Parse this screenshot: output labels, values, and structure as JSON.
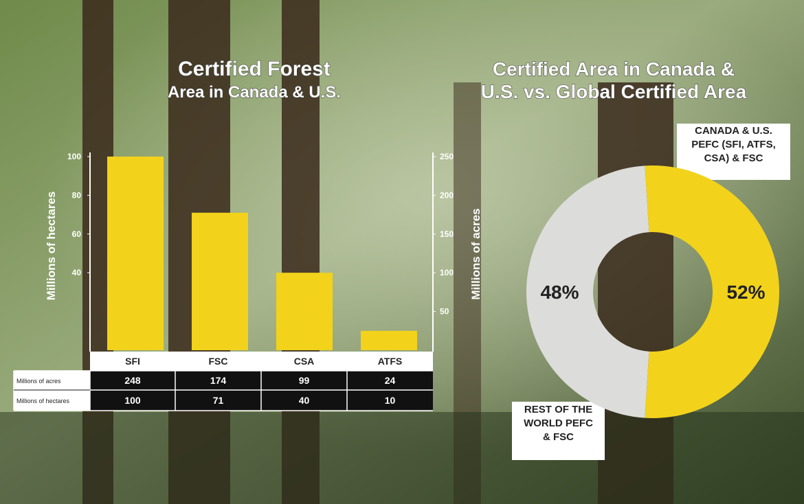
{
  "chart_data": [
    {
      "type": "bar",
      "title": "Certified Forest",
      "subtitle": "Area in Canada & U.S.",
      "categories": [
        "SFI",
        "FSC",
        "CSA",
        "ATFS"
      ],
      "values": [
        100,
        71,
        40,
        10
      ],
      "color": "#f2d21b",
      "ylabel": "Millions of hectares",
      "ylim": [
        0,
        100
      ],
      "yticks": [
        40,
        60,
        80,
        100
      ],
      "y2label": "Millions of acres",
      "y2lim": [
        0,
        250
      ],
      "y2ticks": [
        50,
        100,
        150,
        200,
        250
      ],
      "table": {
        "rows": [
          {
            "label": "Millions of acres",
            "values": [
              248,
              174,
              99,
              24
            ]
          },
          {
            "label": "Millions of hectares",
            "values": [
              100,
              71,
              40,
              10
            ]
          }
        ]
      }
    },
    {
      "type": "donut",
      "title": [
        "Certified Area in Canada &",
        "U.S. vs. Global Certified Area"
      ],
      "categories": [
        "CANADA & U.S. PEFC (SFI, ATFS, CSA) & FSC",
        "REST OF THE WORLD PEFC & FSC"
      ],
      "values": [
        52,
        48
      ],
      "value_labels": [
        "52%",
        "48%"
      ],
      "colors": [
        "#f2d21b",
        "#dcdcda"
      ]
    }
  ]
}
